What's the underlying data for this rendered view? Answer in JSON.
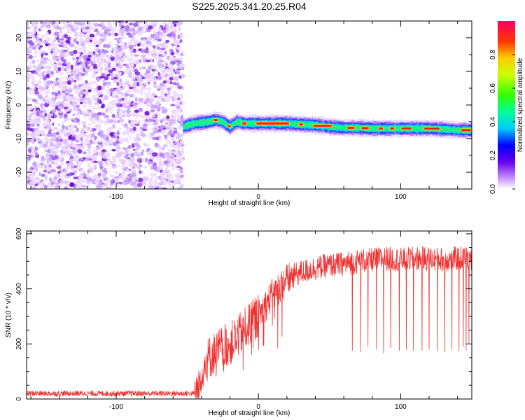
{
  "figure": {
    "title": "S225.2025.341.20.25.R04"
  },
  "chart_data": [
    {
      "type": "heatmap",
      "xlabel": "Height of straight line (km)",
      "ylabel": "Frequency (Hz)",
      "xlim": [
        -163,
        150
      ],
      "ylim": [
        -25,
        25
      ],
      "x_ticks": [
        -100,
        0,
        100
      ],
      "y_ticks": [
        20,
        10,
        0,
        -10,
        -20
      ],
      "noise_region_x": [
        -163,
        -53
      ],
      "signal_band": {
        "x": [
          -53,
          -45,
          -35,
          -30,
          -25,
          -20,
          -15,
          -10,
          0,
          10,
          20,
          30,
          40,
          50,
          60,
          70,
          80,
          90,
          100,
          110,
          120,
          130,
          140,
          150
        ],
        "freq_hz": [
          -6.5,
          -5.5,
          -5.0,
          -4.5,
          -5.0,
          -6.5,
          -5.0,
          -5.5,
          -5.5,
          -5.5,
          -5.5,
          -5.8,
          -6.0,
          -6.5,
          -6.8,
          -6.8,
          -7.0,
          -7.0,
          -7.0,
          -7.0,
          -7.0,
          -7.2,
          -7.5,
          -7.5
        ]
      },
      "colorbar": {
        "label": "Normalized spectral amplitude",
        "range": [
          0,
          1
        ],
        "ticks": [
          "0.0",
          "0.2",
          "0.4",
          "0.6",
          "0.8"
        ],
        "tick_values": [
          0,
          0.2,
          0.4,
          0.6,
          0.8
        ],
        "colormap": "rainbow"
      }
    },
    {
      "type": "line",
      "xlabel": "Height of straight line (km)",
      "ylabel": "SNR (10 * v/v)",
      "xlim": [
        -163,
        150
      ],
      "ylim": [
        0,
        610
      ],
      "x_ticks": [
        -100,
        0,
        100
      ],
      "y_ticks": [
        0,
        200,
        400,
        600
      ],
      "series": [
        {
          "color": "#ee3333",
          "envelope": {
            "x": [
              -163,
              -120,
              -80,
              -45,
              -42,
              -40,
              -35,
              -30,
              -25,
              -20,
              -15,
              -10,
              -5,
              0,
              5,
              10,
              15,
              20,
              25,
              30,
              40,
              50,
              60,
              70,
              80,
              90,
              100,
              110,
              120,
              130,
              140,
              150
            ],
            "snr": [
              20,
              20,
              20,
              20,
              30,
              110,
              150,
              170,
              190,
              200,
              225,
              250,
              280,
              300,
              340,
              380,
              405,
              430,
              450,
              460,
              475,
              485,
              490,
              500,
              505,
              510,
              505,
              510,
              510,
              505,
              510,
              510
            ]
          },
          "dropouts": {
            "x": [
              66,
              72,
              77,
              83,
              88,
              93,
              99,
              104,
              109,
              115,
              120,
              126,
              131,
              136,
              141,
              144,
              146,
              148
            ],
            "snr": [
              175,
              170,
              190,
              180,
              165,
              185,
              175,
              180,
              175,
              175,
              180,
              175,
              170,
              180,
              175,
              190,
              175,
              200
            ]
          }
        }
      ]
    }
  ]
}
